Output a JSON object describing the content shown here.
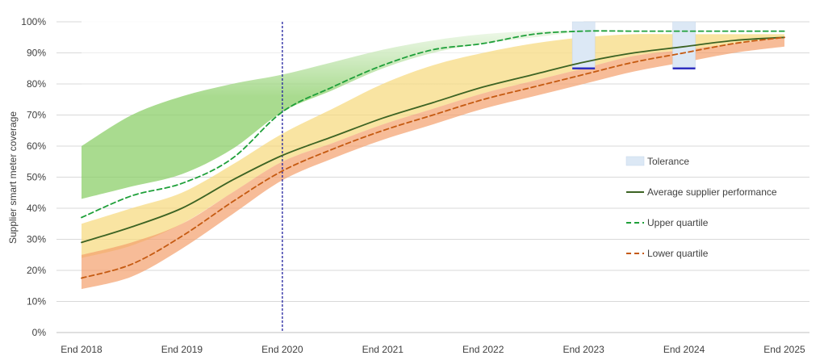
{
  "chart_data": {
    "type": "line",
    "ylabel": "Supplier smart meter coverage",
    "y_tick_labels": [
      "0%",
      "10%",
      "20%",
      "30%",
      "40%",
      "50%",
      "60%",
      "70%",
      "80%",
      "90%",
      "100%"
    ],
    "ylim": [
      0,
      100
    ],
    "x_tick_labels": [
      "End 2018",
      "End 2019",
      "End 2020",
      "End 2021",
      "End 2022",
      "End 2023",
      "End 2024",
      "End 2025"
    ],
    "xlim": [
      2018,
      2025
    ],
    "grid": true,
    "legend_position": "right",
    "reference_line": {
      "x": 2020,
      "style": "dashed",
      "color": "#1f1f9f"
    },
    "series": [
      {
        "name": "Upper quartile",
        "style": "dashed",
        "color": "#1fa03a",
        "x": [
          2018,
          2018.5,
          2019,
          2019.5,
          2020,
          2020.5,
          2021,
          2021.5,
          2022,
          2022.5,
          2023,
          2023.5,
          2024,
          2024.5,
          2025
        ],
        "values": [
          37,
          44,
          48,
          56,
          71,
          79,
          86,
          91,
          93,
          96,
          97,
          97,
          97,
          97,
          97
        ]
      },
      {
        "name": "Average supplier performance",
        "style": "solid",
        "color": "#3c6323",
        "x": [
          2018,
          2018.5,
          2019,
          2019.5,
          2020,
          2020.5,
          2021,
          2021.5,
          2022,
          2022.5,
          2023,
          2023.5,
          2024,
          2024.5,
          2025
        ],
        "values": [
          29,
          34,
          40,
          49,
          57,
          63,
          69,
          74,
          79,
          83,
          87,
          90,
          92,
          94,
          95
        ]
      },
      {
        "name": "Lower quartile",
        "style": "dashed",
        "color": "#c55a11",
        "x": [
          2018,
          2018.5,
          2019,
          2019.5,
          2020,
          2020.5,
          2021,
          2021.5,
          2022,
          2022.5,
          2023,
          2023.5,
          2024,
          2024.5,
          2025
        ],
        "values": [
          17.5,
          22,
          31,
          42,
          52,
          59,
          65,
          70,
          75,
          79,
          83,
          87,
          90,
          93,
          95
        ]
      }
    ],
    "bands": [
      {
        "color": "#8ccf6a",
        "x": [
          2018,
          2018.5,
          2019,
          2019.5,
          2020,
          2020.5,
          2021,
          2021.5,
          2022,
          2022.5,
          2023
        ],
        "lower": [
          43,
          47,
          51,
          59,
          71,
          78,
          85,
          90,
          93,
          95,
          97
        ],
        "upper": [
          60,
          70,
          76,
          80,
          83,
          87,
          91,
          94,
          96,
          97,
          97
        ]
      },
      {
        "color": "#f7d97a",
        "x": [
          2018,
          2018.5,
          2019,
          2019.5,
          2020,
          2020.5,
          2021,
          2021.5,
          2022,
          2022.5,
          2023,
          2023.5,
          2024,
          2024.5,
          2025
        ],
        "lower": [
          24,
          28,
          35,
          45,
          55,
          61,
          67,
          72,
          77,
          81,
          85,
          89,
          91,
          93,
          95
        ],
        "upper": [
          35,
          40,
          45,
          54,
          64,
          72,
          80,
          86,
          90,
          93,
          95,
          96,
          96,
          96,
          96
        ]
      },
      {
        "color": "#f4a06c",
        "x": [
          2018,
          2018.5,
          2019,
          2019.5,
          2020,
          2020.5,
          2021,
          2021.5,
          2022,
          2022.5,
          2023,
          2023.5,
          2024,
          2024.5,
          2025
        ],
        "lower": [
          14,
          18,
          27,
          38,
          49,
          56,
          62,
          67,
          72,
          76,
          80,
          84,
          87,
          90,
          92
        ],
        "upper": [
          25,
          29,
          35,
          45,
          55,
          61,
          67,
          72,
          77,
          81,
          85,
          89,
          91,
          93,
          95
        ]
      }
    ],
    "tolerance": {
      "name": "Tolerance",
      "color": "#dce8f5",
      "marker_color": "#3030c0",
      "ranges": [
        {
          "x": 2023,
          "low": 85,
          "high": 100
        },
        {
          "x": 2024,
          "low": 85,
          "high": 100
        }
      ]
    },
    "legend": [
      {
        "key": "tolerance",
        "label": "Tolerance"
      },
      {
        "key": "average",
        "label": "Average supplier performance"
      },
      {
        "key": "upper",
        "label": "Upper quartile"
      },
      {
        "key": "lower",
        "label": "Lower quartile"
      }
    ]
  }
}
